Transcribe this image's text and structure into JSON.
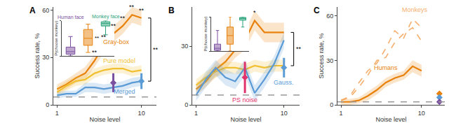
{
  "chart_data": [
    {
      "type": "line",
      "title": "A",
      "x_label": "Noise level",
      "y_label": "Success rate, %",
      "x": [
        1,
        2,
        3,
        4,
        5,
        6,
        7,
        8,
        9,
        10
      ],
      "xlim": [
        0.6,
        11.6
      ],
      "xticks": [
        1,
        10
      ],
      "ylim": [
        0,
        62
      ],
      "yticks": [
        0,
        30,
        60
      ],
      "chance": 5,
      "series": [
        {
          "name": "Gray-box",
          "color": "#e8820c",
          "line_style": "solid",
          "values": [
            10,
            13,
            17,
            20,
            28,
            38,
            45,
            50,
            57,
            55
          ],
          "error": [
            3,
            3,
            3,
            4,
            4,
            5,
            5,
            5,
            5,
            5
          ],
          "label_at": [
            7.3,
            40
          ]
        },
        {
          "name": "Pure model",
          "color": "#f0c030",
          "line_style": "solid",
          "values": [
            8,
            12,
            15,
            16,
            20,
            22,
            23,
            23,
            21,
            22
          ],
          "error": [
            3,
            3,
            3,
            3,
            3,
            3,
            3,
            3,
            3,
            3
          ],
          "label_at": [
            7.6,
            28
          ]
        },
        {
          "name": "Merged",
          "color": "#5b9bd5",
          "line_style": "solid",
          "values": [
            6,
            7,
            7,
            11,
            11,
            10,
            11,
            12,
            14,
            15
          ],
          "error": [
            2,
            2,
            2,
            3,
            3,
            3,
            3,
            3,
            3,
            3
          ],
          "label_at": [
            8.2,
            8.5
          ]
        }
      ],
      "points": [
        {
          "x": 7,
          "value": 14,
          "error": 6,
          "color": "#7b4fa0",
          "marker": "diamond"
        },
        {
          "x": 10,
          "value": 15,
          "error": 5,
          "color": "#5b9bd5",
          "marker": "diamond"
        }
      ],
      "annotations": [
        {
          "text": "**",
          "x": 5,
          "y": 33
        },
        {
          "text": "**",
          "x": 6,
          "y": 43
        },
        {
          "text": "**",
          "x": 7,
          "y": 50
        },
        {
          "text": "**",
          "x": 8,
          "y": 55
        },
        {
          "text": "**",
          "x": 9,
          "y": 62
        },
        {
          "text": "**",
          "x": 10,
          "y": 60
        }
      ],
      "brackets": [
        {
          "text": "**",
          "x": 11,
          "y_from": 15,
          "y_to": 55
        }
      ],
      "inset": {
        "type": "box",
        "y_label": "P(choose monkey)",
        "categories": [
          "Human face",
          null,
          "Monkey face"
        ],
        "colors": [
          "#7b4fa0",
          "#e8820c",
          "#2aa37a"
        ],
        "ylim": [
          0,
          1
        ],
        "yticks": [
          0,
          1
        ],
        "tick_labels": false,
        "boxes": [
          {
            "lower": 0,
            "q1": 0.05,
            "median": 0.12,
            "q3": 0.25,
            "upper": 0.55
          },
          {
            "lower": 0.1,
            "q1": 0.3,
            "median": 0.5,
            "q3": 0.75,
            "upper": 0.9
          },
          {
            "lower": 0.6,
            "q1": 0.85,
            "median": 0.92,
            "q3": 0.97,
            "upper": 1
          }
        ],
        "annotations": [
          {
            "text": "**",
            "x": 1.5,
            "y": 0.5
          }
        ]
      }
    },
    {
      "type": "line",
      "title": "B",
      "x_label": "Noise level",
      "x": [
        1,
        2,
        3,
        4,
        5,
        6,
        7,
        8,
        9,
        10
      ],
      "xlim": [
        0.6,
        11.6
      ],
      "xticks": [
        1,
        10
      ],
      "ylim": [
        0,
        50
      ],
      "yticks": [
        0,
        30
      ],
      "chance": 5,
      "series": [
        {
          "color": "#e8820c",
          "line_style": "solid",
          "values": [
            8,
            12,
            18,
            22,
            28,
            33,
            43,
            37,
            37,
            37
          ],
          "error": [
            3,
            3,
            4,
            4,
            4,
            5,
            5,
            5,
            5,
            5
          ]
        },
        {
          "color": "#f0c030",
          "line_style": "solid",
          "values": [
            10,
            14,
            17,
            19,
            19,
            18,
            20,
            19,
            20,
            20
          ],
          "error": [
            3,
            3,
            3,
            3,
            3,
            3,
            3,
            3,
            3,
            3
          ]
        },
        {
          "color": "#5b9bd5",
          "line_style": "solid",
          "values": [
            5,
            13,
            19,
            14,
            12,
            19,
            6,
            13,
            21,
            33
          ],
          "error": [
            3,
            4,
            4,
            4,
            4,
            4,
            4,
            4,
            4,
            4
          ]
        }
      ],
      "points": [
        {
          "x": 6,
          "value": 14,
          "error": 8,
          "color": "#e0336b",
          "marker": "diamond"
        },
        {
          "x": 10,
          "value": 19,
          "error": 5,
          "color": "#5b9bd5",
          "marker": "diamond",
          "label": "Gauss."
        }
      ],
      "annotations": [
        {
          "text": "PS noise",
          "x": 6,
          "y": 2.5,
          "color": "#e0336b"
        },
        {
          "text": "*",
          "x": 7,
          "y": 47
        }
      ],
      "brackets": [
        {
          "text": "**",
          "x": 11,
          "y_from": 20,
          "y_to": 37
        }
      ],
      "inset": {
        "type": "box",
        "y_label": "P(choose monkey)",
        "categories": [
          null,
          null,
          null
        ],
        "colors": [
          "#7b4fa0",
          "#e8820c",
          "#2aa37a"
        ],
        "ylim": [
          0,
          1
        ],
        "yticks": [
          0,
          1
        ],
        "tick_labels": false,
        "boxes": [
          {
            "lower": 0,
            "q1": 0.02,
            "median": 0.08,
            "q3": 0.2,
            "upper": 0.6
          },
          {
            "lower": 0,
            "q1": 0.2,
            "median": 0.45,
            "q3": 0.7,
            "upper": 1
          },
          {
            "lower": 0.7,
            "q1": 0.9,
            "median": 0.95,
            "q3": 0.98,
            "upper": 1
          }
        ]
      }
    },
    {
      "type": "line",
      "title": "C",
      "x_label": "Noise level",
      "y_label": "Success rate, %",
      "x": [
        1,
        2,
        3,
        4,
        5,
        6,
        7,
        8,
        9,
        10
      ],
      "xlim": [
        0.6,
        12.6
      ],
      "xticks": [
        1,
        10
      ],
      "ylim": [
        0,
        66
      ],
      "yticks": [
        0,
        30,
        60
      ],
      "chance": 2,
      "series": [
        {
          "name": "Monkeys",
          "color": "#f5b070",
          "line_style": "dash",
          "runs": [
            [
              3,
              6,
              15,
              23,
              28,
              38,
              50,
              45,
              58,
              52
            ],
            [
              3,
              5,
              12,
              20,
              30,
              32,
              42,
              48,
              52,
              43
            ]
          ],
          "label_at": [
            9.3,
            64
          ]
        },
        {
          "name": "Humans",
          "color": "#e8820c",
          "line_style": "solid",
          "values": [
            2,
            2,
            3,
            6,
            10,
            15,
            18,
            20,
            26,
            23
          ],
          "error": [
            2,
            2,
            2,
            3,
            3,
            3,
            3,
            3,
            4,
            4
          ],
          "label_at": [
            6,
            25
          ]
        }
      ],
      "points": [
        {
          "x": 12,
          "value": 7.5,
          "error": 1.5,
          "color": "#e8820c",
          "marker": "diamond"
        },
        {
          "x": 12,
          "value": 5,
          "error": 1.5,
          "color": "#5b9bd5",
          "marker": "diamond"
        },
        {
          "x": 12,
          "value": 2,
          "error": 1.5,
          "color": "#7b4fa0",
          "marker": "diamond"
        }
      ]
    }
  ]
}
